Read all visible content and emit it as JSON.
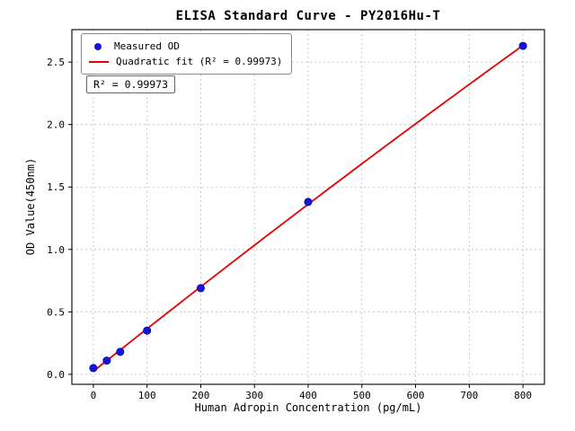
{
  "chart_data": {
    "type": "scatter",
    "title": "ELISA Standard Curve - PY2016Hu-T",
    "xlabel": "Human Adropin Concentration (pg/mL)",
    "ylabel": "OD Value(450nm)",
    "x": [
      0,
      25,
      50,
      100,
      200,
      400,
      800
    ],
    "series": [
      {
        "name": "Measured OD",
        "type": "scatter",
        "color": "#1414dd",
        "values": [
          0.05,
          0.11,
          0.18,
          0.35,
          0.69,
          1.38,
          2.63
        ]
      },
      {
        "name": "Quadratic fit (R² = 0.99973)",
        "type": "quadratic-fit-line",
        "color": "#e60000"
      }
    ],
    "annotation": "R² = 0.99973",
    "r_squared": 0.99973,
    "xticks": [
      0,
      100,
      200,
      300,
      400,
      500,
      600,
      700,
      800
    ],
    "yticks": [
      0.0,
      0.5,
      1.0,
      1.5,
      2.0,
      2.5
    ],
    "xlim": [
      -40,
      840
    ],
    "ylim": [
      -0.08,
      2.76
    ],
    "grid": true,
    "grid_style": "dashed",
    "legend_position": "upper left",
    "colors": {
      "grid": "#bdbdbd",
      "axis": "#000000",
      "scatter": "#1414dd",
      "fit_line": "#e60000",
      "text": "#000000"
    }
  }
}
